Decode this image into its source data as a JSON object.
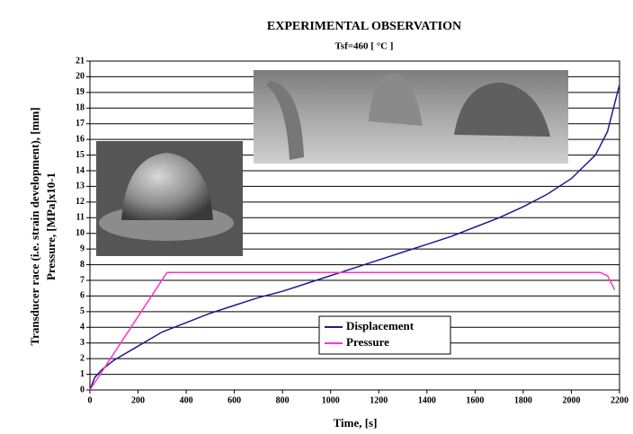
{
  "chart_data": {
    "type": "line",
    "title": "EXPERIMENTAL OBSERVATION",
    "subtitle": "Tsf=460 [ °C ]",
    "x_label": "Time, [s]",
    "y_label": [
      "Transducer race (i.e. strain development), [mm]",
      "Pressure, [MPa]x10-1"
    ],
    "series": [
      {
        "name": "Displacement",
        "color": "#1c1c8c",
        "x": [
          0,
          20,
          50,
          100,
          200,
          300,
          400,
          500,
          600,
          700,
          800,
          900,
          1000,
          1100,
          1200,
          1300,
          1400,
          1500,
          1600,
          1700,
          1800,
          1900,
          2000,
          2100,
          2150,
          2200
        ],
        "values": [
          0,
          0.8,
          1.3,
          1.9,
          2.8,
          3.7,
          4.3,
          4.9,
          5.4,
          5.9,
          6.3,
          6.8,
          7.3,
          7.8,
          8.3,
          8.8,
          9.3,
          9.8,
          10.4,
          11.0,
          11.7,
          12.5,
          13.5,
          15.0,
          16.5,
          19.5
        ]
      },
      {
        "name": "Pressure",
        "color": "#ff33cc",
        "x": [
          0,
          320,
          2120,
          2150,
          2180
        ],
        "values": [
          0,
          7.5,
          7.5,
          7.3,
          6.4
        ]
      }
    ],
    "xlim": [
      0,
      2200
    ],
    "xticks": [
      0,
      200,
      400,
      600,
      800,
      1000,
      1200,
      1400,
      1600,
      1800,
      2000,
      2200
    ],
    "ylim": [
      0,
      21
    ],
    "yticks": [
      0,
      1,
      2,
      3,
      4,
      5,
      6,
      7,
      8,
      9,
      10,
      11,
      12,
      13,
      14,
      15,
      16,
      17,
      18,
      19,
      20,
      21
    ],
    "grid": true
  }
}
